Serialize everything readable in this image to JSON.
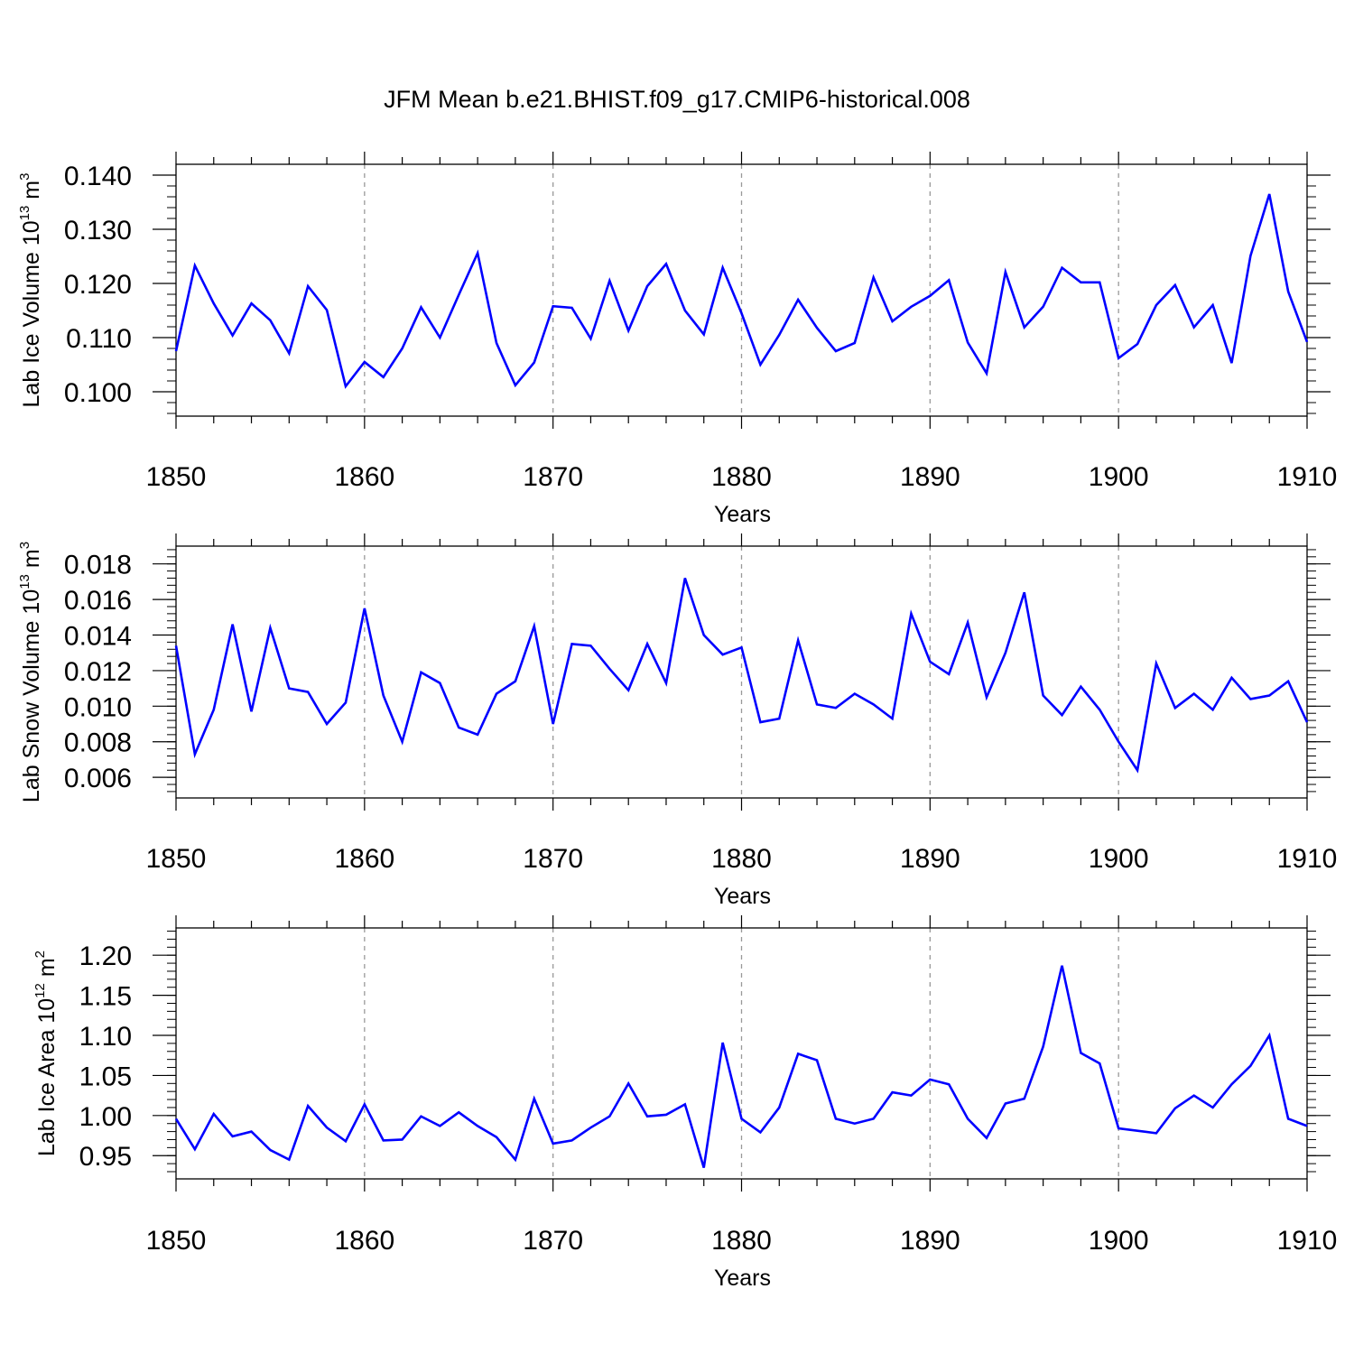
{
  "title": "JFM Mean b.e21.BHIST.f09_g17.CMIP6-historical.008",
  "line_color": "#0000ff",
  "grid_color": "#999999",
  "chart_data": [
    {
      "type": "line",
      "name": "lab-ice-volume",
      "ylabel_text": "Lab Ice Volume 10",
      "ylabel_exp": "13",
      "ylabel_unit": "m",
      "ylabel_unit_exp": "3",
      "xlabel": "Years",
      "xlim": [
        1850,
        1910
      ],
      "ylim": [
        0.0955,
        0.142
      ],
      "x_ticks": [
        "1850",
        "1860",
        "1870",
        "1880",
        "1890",
        "1900",
        "1910"
      ],
      "y_ticks": [
        "0.100",
        "0.110",
        "0.120",
        "0.130",
        "0.140"
      ],
      "y_tick_values": [
        0.1,
        0.11,
        0.12,
        0.13,
        0.14
      ],
      "y_minor_step": 0.002,
      "x_start": 1850,
      "values": [
        0.1075,
        0.1233,
        0.1163,
        0.1104,
        0.1163,
        0.1132,
        0.1071,
        0.1195,
        0.1151,
        0.101,
        0.1055,
        0.1027,
        0.108,
        0.1156,
        0.11,
        0.1179,
        0.1256,
        0.109,
        0.1012,
        0.1054,
        0.1158,
        0.1155,
        0.1098,
        0.1205,
        0.1113,
        0.1195,
        0.1236,
        0.115,
        0.1106,
        0.1229,
        0.1145,
        0.105,
        0.1105,
        0.117,
        0.1118,
        0.1075,
        0.109,
        0.1211,
        0.113,
        0.1157,
        0.1177,
        0.1206,
        0.1091,
        0.1034,
        0.1221,
        0.1119,
        0.1157,
        0.1229,
        0.1202,
        0.1202,
        0.1062,
        0.1088,
        0.116,
        0.1197,
        0.1119,
        0.116,
        0.1053,
        0.1251,
        0.1365,
        0.1185,
        0.1092
      ]
    },
    {
      "type": "line",
      "name": "lab-snow-volume",
      "ylabel_text": "Lab Snow Volume 10",
      "ylabel_exp": "13",
      "ylabel_unit": "m",
      "ylabel_unit_exp": "3",
      "xlabel": "Years",
      "xlim": [
        1850,
        1910
      ],
      "ylim": [
        0.00484,
        0.019
      ],
      "x_ticks": [
        "1850",
        "1860",
        "1870",
        "1880",
        "1890",
        "1900",
        "1910"
      ],
      "y_ticks": [
        "0.006",
        "0.008",
        "0.010",
        "0.012",
        "0.014",
        "0.016",
        "0.018"
      ],
      "y_tick_values": [
        0.006,
        0.008,
        0.01,
        0.012,
        0.014,
        0.016,
        0.018
      ],
      "y_minor_step": 0.0004,
      "x_start": 1850,
      "values": [
        0.0134,
        0.0073,
        0.0098,
        0.0146,
        0.0097,
        0.0144,
        0.011,
        0.0108,
        0.009,
        0.0102,
        0.0155,
        0.0106,
        0.008,
        0.0119,
        0.0113,
        0.0088,
        0.0084,
        0.0107,
        0.0114,
        0.0145,
        0.009,
        0.0135,
        0.0134,
        0.0121,
        0.0109,
        0.0135,
        0.0113,
        0.0172,
        0.014,
        0.0129,
        0.0133,
        0.0091,
        0.0093,
        0.0137,
        0.0101,
        0.0099,
        0.0107,
        0.0101,
        0.0093,
        0.0152,
        0.0125,
        0.0118,
        0.0147,
        0.0105,
        0.013,
        0.0164,
        0.0106,
        0.0095,
        0.0111,
        0.0098,
        0.008,
        0.0064,
        0.0124,
        0.0099,
        0.0107,
        0.0098,
        0.0116,
        0.0104,
        0.0106,
        0.0114,
        0.0091
      ]
    },
    {
      "type": "line",
      "name": "lab-ice-area",
      "ylabel_text": "Lab Ice Area 10",
      "ylabel_exp": "12",
      "ylabel_unit": "m",
      "ylabel_unit_exp": "2",
      "xlabel": "Years",
      "xlim": [
        1850,
        1910
      ],
      "ylim": [
        0.921,
        1.234
      ],
      "x_ticks": [
        "1850",
        "1860",
        "1870",
        "1880",
        "1890",
        "1900",
        "1910"
      ],
      "y_ticks": [
        "0.95",
        "1.00",
        "1.05",
        "1.10",
        "1.15",
        "1.20"
      ],
      "y_tick_values": [
        0.95,
        1.0,
        1.05,
        1.1,
        1.15,
        1.2
      ],
      "y_minor_step": 0.01,
      "x_start": 1850,
      "values": [
        0.996,
        0.958,
        1.002,
        0.974,
        0.98,
        0.957,
        0.945,
        1.012,
        0.985,
        0.968,
        1.014,
        0.969,
        0.97,
        0.999,
        0.987,
        1.004,
        0.987,
        0.973,
        0.945,
        1.021,
        0.965,
        0.969,
        0.985,
        0.999,
        1.04,
        0.999,
        1.001,
        1.014,
        0.935,
        1.091,
        0.996,
        0.979,
        1.01,
        1.077,
        1.069,
        0.996,
        0.99,
        0.996,
        1.029,
        1.025,
        1.045,
        1.039,
        0.996,
        0.972,
        1.015,
        1.021,
        1.086,
        1.187,
        1.078,
        1.065,
        0.984,
        null,
        0.978,
        1.009,
        1.025,
        1.01,
        1.039,
        1.062,
        1.1,
        0.996,
        0.987
      ]
    }
  ]
}
